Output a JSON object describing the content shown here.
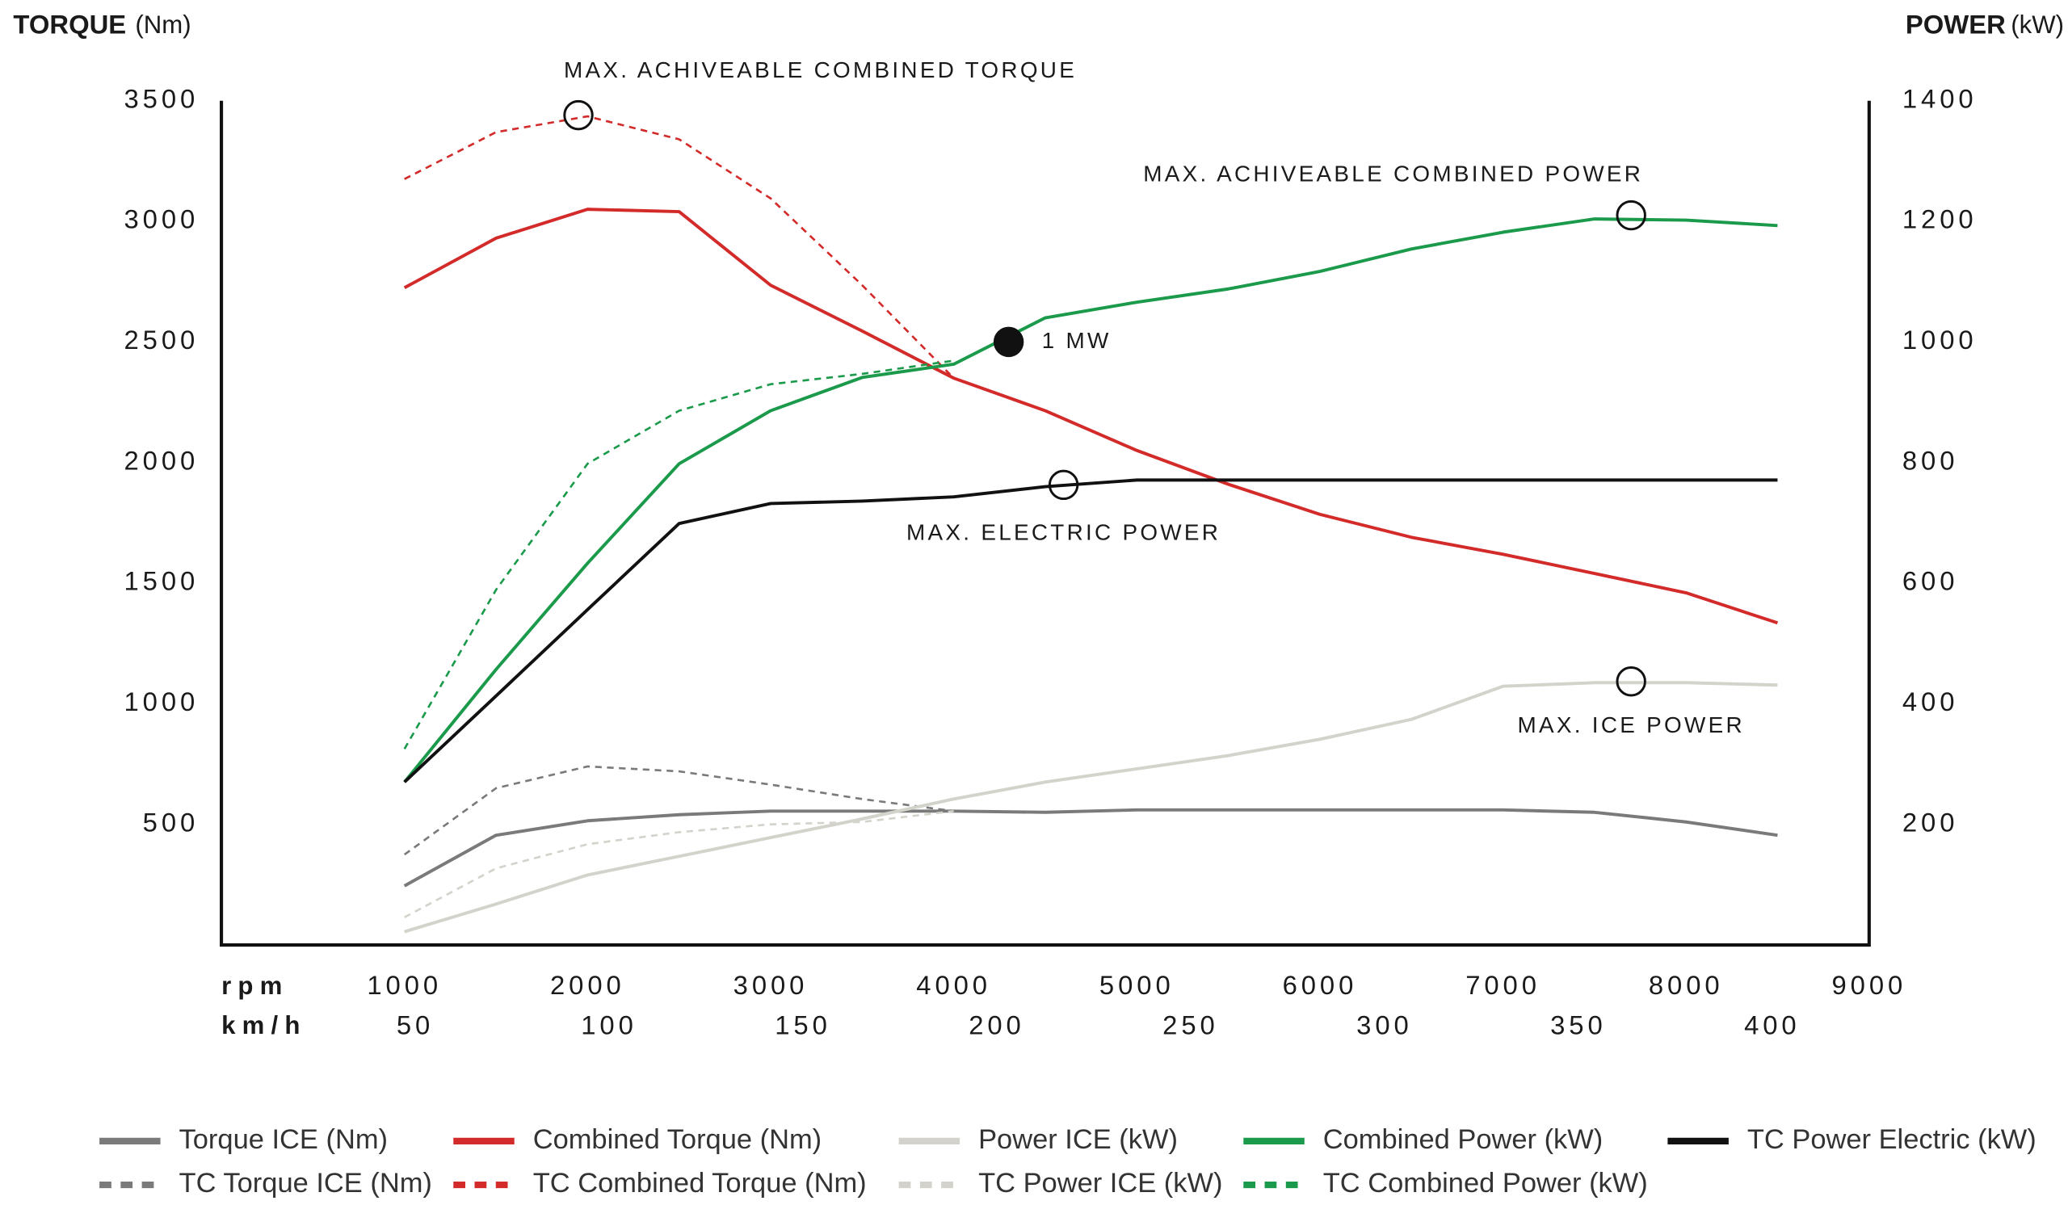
{
  "chart_data": {
    "type": "line",
    "y_label": "TORQUE",
    "y_unit": "(Nm)",
    "y2_label": "POWER",
    "y2_unit": "(kW)",
    "x_label": "rpm",
    "x2_label": "km/h",
    "xlim": [
      0,
      9000
    ],
    "xticks": [
      1000,
      2000,
      3000,
      4000,
      5000,
      6000,
      7000,
      8000,
      9000
    ],
    "x2lim": [
      0,
      425
    ],
    "x2ticks": [
      50,
      100,
      150,
      200,
      250,
      300,
      350,
      400
    ],
    "ylim": [
      0,
      3500
    ],
    "yticks": [
      500,
      1000,
      1500,
      2000,
      2500,
      3000,
      3500
    ],
    "y2lim": [
      0,
      1400
    ],
    "y2ticks": [
      200,
      400,
      600,
      800,
      1000,
      1200,
      1400
    ],
    "x": [
      1000,
      1500,
      2000,
      2500,
      3000,
      3500,
      4000,
      4500,
      5000,
      5500,
      6000,
      6500,
      7000,
      7500,
      8000,
      8500
    ],
    "series": [
      {
        "name": "Torque ICE (Nm)",
        "color": "#7a7a7a",
        "dash": false,
        "axis": "y",
        "values": [
          245,
          455,
          515,
          540,
          555,
          555,
          555,
          550,
          560,
          560,
          560,
          560,
          560,
          550,
          510,
          455
        ]
      },
      {
        "name": "TC Torque ICE (Nm)",
        "color": "#7a7a7a",
        "dash": true,
        "axis": "y",
        "values": [
          375,
          650,
          740,
          720,
          665,
          605,
          555,
          null,
          null,
          null,
          null,
          null,
          null,
          null,
          null,
          null
        ]
      },
      {
        "name": "Combined Torque (Nm)",
        "color": "#d32a2a",
        "dash": false,
        "axis": "y",
        "values": [
          2725,
          2930,
          3050,
          3040,
          2735,
          2545,
          2350,
          2215,
          2050,
          1910,
          1785,
          1690,
          1620,
          1540,
          1460,
          1335
        ]
      },
      {
        "name": "TC Combined Torque (Nm)",
        "color": "#d32a2a",
        "dash": true,
        "axis": "y",
        "values": [
          3175,
          3370,
          3435,
          3340,
          3095,
          2735,
          2350,
          null,
          null,
          null,
          null,
          null,
          null,
          null,
          null,
          null
        ]
      },
      {
        "name": "Power ICE (kW)",
        "color": "#d3d3cb",
        "dash": false,
        "axis": "y2",
        "values": [
          22,
          68,
          116,
          147,
          178,
          209,
          242,
          270,
          292,
          314,
          341,
          374,
          429,
          435,
          435,
          431
        ]
      },
      {
        "name": "TC Power ICE (kW)",
        "color": "#d3d3cb",
        "dash": true,
        "axis": "y2",
        "values": [
          46,
          127,
          167,
          187,
          200,
          204,
          222,
          null,
          null,
          null,
          null,
          null,
          null,
          null,
          null,
          null
        ]
      },
      {
        "name": "Combined Power (kW)",
        "color": "#1a9a4a",
        "dash": false,
        "axis": "y2",
        "values": [
          270,
          457,
          633,
          798,
          886,
          941,
          963,
          1040,
          1066,
          1088,
          1117,
          1154,
          1182,
          1204,
          1202,
          1193
        ]
      },
      {
        "name": "TC Combined Power (kW)",
        "color": "#1a9a4a",
        "dash": true,
        "axis": "y2",
        "values": [
          325,
          589,
          798,
          886,
          930,
          947,
          969,
          null,
          null,
          null,
          null,
          null,
          null,
          null,
          null,
          null
        ]
      },
      {
        "name": "TC Power Electric (kW)",
        "color": "#111111",
        "dash": false,
        "axis": "y2",
        "values": [
          270,
          413,
          556,
          699,
          732,
          736,
          743,
          760,
          771,
          771,
          771,
          771,
          771,
          771,
          771,
          771
        ]
      }
    ],
    "annotations": [
      {
        "text": "MAX. ACHIVEABLE COMBINED TORQUE",
        "x": 1950,
        "y": 3440,
        "axis": "y",
        "filled": false
      },
      {
        "text": "MAX. ACHIVEABLE COMBINED POWER",
        "x": 7700,
        "y": 1210,
        "axis": "y2",
        "filled": false
      },
      {
        "text": "1 MW",
        "x": 4300,
        "y": 1000,
        "axis": "y2",
        "filled": true
      },
      {
        "text": "MAX. ELECTRIC POWER",
        "x": 4600,
        "y": 763,
        "axis": "y2",
        "filled": false
      },
      {
        "text": "MAX. ICE POWER",
        "x": 7700,
        "y": 437,
        "axis": "y2",
        "filled": false
      }
    ]
  }
}
